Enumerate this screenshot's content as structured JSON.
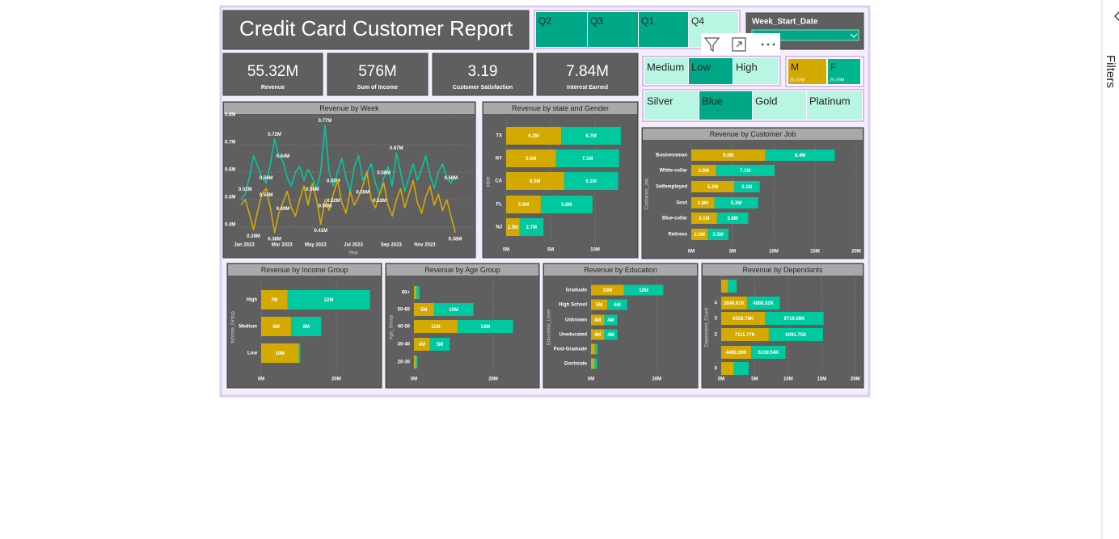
{
  "report": {
    "title": "Credit Card Customer Report"
  },
  "quarter_slicer": {
    "items": [
      {
        "label": "Q2",
        "selected": true
      },
      {
        "label": "Q3",
        "selected": true
      },
      {
        "label": "Q1",
        "selected": true
      },
      {
        "label": "Q4",
        "selected": false
      }
    ]
  },
  "date_slicer": {
    "label": "Week_Start_Date"
  },
  "kpis": [
    {
      "value": "55.32M",
      "label": "Revenue"
    },
    {
      "value": "576M",
      "label": "Sum of Income"
    },
    {
      "value": "3.19",
      "label": "Customer Satisfaction"
    },
    {
      "value": "7.84M",
      "label": "Interest Earned"
    }
  ],
  "income_slicer": {
    "items": [
      {
        "label": "Medium",
        "selected": false
      },
      {
        "label": "Low",
        "selected": true
      },
      {
        "label": "High",
        "selected": false
      }
    ]
  },
  "gender_slicer": {
    "items": [
      {
        "label": "M",
        "value": "30.22M",
        "color": "#d4a900"
      },
      {
        "label": "F",
        "value": "25.09M",
        "color": "#00b48e"
      }
    ]
  },
  "card_slicer": {
    "items": [
      {
        "label": "Silver",
        "selected": false
      },
      {
        "label": "Blue",
        "selected": true
      },
      {
        "label": "Gold",
        "selected": false
      },
      {
        "label": "Platinum",
        "selected": false
      }
    ]
  },
  "filters_pane": {
    "label": "Filters"
  },
  "chart_data": [
    {
      "type": "line",
      "title": "Revenue by Week",
      "x_label": "Year",
      "categories": [
        "Jan 2023",
        null,
        null,
        null,
        null,
        null,
        null,
        null,
        null,
        "Mar 2023",
        null,
        null,
        null,
        null,
        null,
        null,
        null,
        "May 2023",
        null,
        null,
        null,
        null,
        null,
        null,
        null,
        null,
        "Jul 2023",
        null,
        null,
        null,
        null,
        null,
        null,
        null,
        null,
        "Sep 2023",
        null,
        null,
        null,
        null,
        null,
        null,
        null,
        "Nov 2023",
        null,
        null,
        null,
        null,
        null,
        null,
        null,
        null
      ],
      "series": [
        {
          "color": "#00c9a0",
          "values": [
            0.5,
            0.52,
            0.58,
            0.66,
            0.62,
            0.58,
            0.56,
            0.63,
            0.72,
            0.66,
            0.64,
            0.58,
            0.55,
            0.6,
            0.62,
            0.57,
            0.61,
            0.58,
            0.54,
            0.6,
            0.77,
            0.6,
            0.55,
            0.6,
            0.65,
            0.58,
            0.53,
            0.62,
            0.66,
            0.57,
            0.6,
            0.63,
            0.56,
            0.52,
            0.58,
            0.62,
            0.55,
            0.67,
            0.6,
            0.53,
            0.58,
            0.63,
            0.57,
            0.61,
            0.66,
            0.59,
            0.54,
            0.6,
            0.63,
            0.58,
            0.56,
            0.59
          ],
          "value_labels": [
            null,
            "0.52M",
            null,
            null,
            null,
            null,
            "0.56M",
            null,
            "0.72M",
            null,
            "0.64M",
            null,
            null,
            null,
            null,
            null,
            null,
            null,
            null,
            null,
            "0.77M",
            null,
            "0.55M",
            null,
            null,
            null,
            null,
            null,
            null,
            null,
            null,
            null,
            null,
            null,
            "0.58M",
            null,
            null,
            "0.67M",
            null,
            null,
            null,
            null,
            null,
            null,
            null,
            null,
            null,
            null,
            null,
            null,
            "0.56M",
            null
          ]
        },
        {
          "color": "#d4a900",
          "values": [
            0.48,
            0.5,
            0.45,
            0.39,
            0.46,
            0.52,
            0.54,
            0.47,
            0.38,
            0.45,
            0.49,
            0.53,
            0.47,
            0.44,
            0.5,
            0.55,
            0.48,
            0.56,
            0.5,
            0.41,
            0.5,
            0.46,
            0.52,
            0.57,
            0.49,
            0.45,
            0.53,
            0.48,
            0.51,
            0.55,
            0.6,
            0.5,
            0.47,
            0.52,
            0.56,
            0.48,
            0.44,
            0.5,
            0.54,
            0.47,
            0.52,
            0.57,
            0.49,
            0.45,
            0.51,
            0.55,
            0.48,
            0.52,
            0.46,
            0.5,
            0.44,
            0.38
          ],
          "value_labels": [
            null,
            null,
            null,
            "0.39M",
            null,
            null,
            "0.54M",
            null,
            "0.38M",
            null,
            "0.49M",
            null,
            null,
            null,
            null,
            null,
            null,
            "0.56M",
            null,
            "0.41M",
            "0.50M",
            null,
            "0.52M",
            null,
            null,
            null,
            null,
            null,
            null,
            "0.55M",
            null,
            null,
            null,
            "0.52M",
            null,
            null,
            null,
            null,
            null,
            null,
            null,
            null,
            null,
            null,
            null,
            null,
            null,
            null,
            null,
            null,
            null,
            "0.38M"
          ]
        }
      ],
      "ylim": [
        0.35,
        0.8
      ],
      "yticks": [
        {
          "value": 0.4,
          "label": "0.4M"
        },
        {
          "value": 0.5,
          "label": "0.5M"
        },
        {
          "value": 0.6,
          "label": "0.6M"
        },
        {
          "value": 0.7,
          "label": "0.7M"
        },
        {
          "value": 0.8,
          "label": "0.8M"
        }
      ],
      "grid": true
    },
    {
      "type": "hbar",
      "title": "Revenue by state and Gender",
      "y_label": "state",
      "categories": [
        "TX",
        "NY",
        "CA",
        "FL",
        "NJ"
      ],
      "series": [
        {
          "color": "#d4a900",
          "values": [
            6.2,
            5.6,
            6.5,
            3.9,
            1.5
          ],
          "value_labels": [
            "6.2M",
            "5.6M",
            "6.5M",
            "3.9M",
            "1.5M"
          ]
        },
        {
          "color": "#00c9a0",
          "values": [
            6.7,
            7.1,
            6.1,
            5.8,
            2.7
          ],
          "value_labels": [
            "6.7M",
            "7.1M",
            "6.1M",
            "5.8M",
            "2.7M"
          ]
        }
      ],
      "xlim": [
        0,
        15
      ],
      "xticks": [
        {
          "value": 0,
          "label": "0M"
        },
        {
          "value": 5,
          "label": "5M"
        },
        {
          "value": 10,
          "label": "10M"
        }
      ],
      "grid": true
    },
    {
      "type": "hbar",
      "title": "Revenue by Customer Job",
      "y_label": "Customer_Job",
      "categories": [
        "Businessman",
        "White-collar",
        "Selfemployed",
        "Govt",
        "Blue-collar",
        "Retirees"
      ],
      "series": [
        {
          "color": "#d4a900",
          "values": [
            9.0,
            3.0,
            5.2,
            2.8,
            3.1,
            2.0
          ],
          "value_labels": [
            "9.0M",
            "3.0M",
            "5.2M",
            "2.8M",
            "3.1M",
            "2.0M"
          ]
        },
        {
          "color": "#00c9a0",
          "values": [
            8.4,
            7.1,
            3.1,
            5.3,
            3.8,
            2.5
          ],
          "value_labels": [
            "8.4M",
            "7.1M",
            "3.1M",
            "5.3M",
            "3.8M",
            "2.5M"
          ]
        }
      ],
      "xlim": [
        0,
        20
      ],
      "xticks": [
        {
          "value": 0,
          "label": "0M"
        },
        {
          "value": 5,
          "label": "5M"
        },
        {
          "value": 10,
          "label": "10M"
        },
        {
          "value": 15,
          "label": "15M"
        },
        {
          "value": 20,
          "label": "20M"
        }
      ],
      "grid": true
    },
    {
      "type": "hbar",
      "title": "Revenue by Income Group",
      "y_label": "Income_Group",
      "categories": [
        "High",
        "Medium",
        "Low"
      ],
      "series": [
        {
          "color": "#d4a900",
          "values": [
            7,
            8,
            10
          ],
          "value_labels": [
            "7M",
            "8M",
            "10M"
          ]
        },
        {
          "color": "#00c9a0",
          "values": [
            22,
            8,
            0.4
          ],
          "value_labels": [
            "22M",
            "8M",
            null
          ]
        }
      ],
      "xlim": [
        0,
        31
      ],
      "xticks": [
        {
          "value": 0,
          "label": "0M"
        },
        {
          "value": 20,
          "label": "20M"
        }
      ],
      "grid": true
    },
    {
      "type": "hbar",
      "title": "Revenue by Age Group",
      "y_label": "Age_Group",
      "categories": [
        "60+",
        "50-60",
        "40-50",
        "30-40",
        "20-30"
      ],
      "series": [
        {
          "color": "#d4a900",
          "values": [
            0.6,
            5,
            11,
            4,
            0.5
          ],
          "value_labels": [
            null,
            "5M",
            "11M",
            "4M",
            null
          ]
        },
        {
          "color": "#00c9a0",
          "values": [
            0.8,
            10,
            14,
            5,
            0.4
          ],
          "value_labels": [
            null,
            "10M",
            "14M",
            "5M",
            null
          ]
        }
      ],
      "xlim": [
        0,
        31
      ],
      "xticks": [
        {
          "value": 0,
          "label": "0M"
        },
        {
          "value": 20,
          "label": "20M"
        }
      ],
      "grid": true
    },
    {
      "type": "hbar",
      "title": "Revenue by Education",
      "y_label": "Education_Level",
      "categories": [
        "Graduate",
        "High School",
        "Unknown",
        "Uneducated",
        "Post-Graduate",
        "Doctorate"
      ],
      "series": [
        {
          "color": "#d4a900",
          "values": [
            10,
            5,
            4,
            4,
            1.2,
            1
          ],
          "value_labels": [
            "10M",
            "5M",
            "4M",
            "4M",
            null,
            null
          ]
        },
        {
          "color": "#00c9a0",
          "values": [
            12,
            6,
            4,
            4,
            0.8,
            0.8
          ],
          "value_labels": [
            "12M",
            "6M",
            "4M",
            "4M",
            null,
            null
          ]
        }
      ],
      "xlim": [
        0,
        30
      ],
      "xticks": [
        {
          "value": 0,
          "label": "0M"
        },
        {
          "value": 20,
          "label": "20M"
        }
      ],
      "grid": true
    },
    {
      "type": "hbar",
      "title": "Revenue by Dependants",
      "y_label": "Dependent_Count",
      "categories": [
        null,
        "4",
        "3",
        "2",
        null,
        "0"
      ],
      "series": [
        {
          "color": "#d4a900",
          "values": [
            1.0,
            3.84861,
            6.55878,
            7.11177,
            4.49039,
            1.9
          ],
          "value_labels": [
            null,
            "3848.61K",
            "6558.78K",
            "7111.77K",
            "4490.39K",
            null
          ]
        },
        {
          "color": "#00c9a0",
          "values": [
            1.3,
            4.88802,
            8.71958,
            8.09175,
            5.13054,
            2.2
          ],
          "value_labels": [
            null,
            "4888.02K",
            "8719.58K",
            "8091.75K",
            "5130.54K",
            null
          ]
        }
      ],
      "xlim": [
        0,
        21
      ],
      "xticks": [
        {
          "value": 0,
          "label": "0M"
        },
        {
          "value": 5,
          "label": "5M"
        },
        {
          "value": 10,
          "label": "10M"
        },
        {
          "value": 15,
          "label": "15M"
        },
        {
          "value": 20,
          "label": "20M"
        }
      ],
      "grid": true
    }
  ]
}
